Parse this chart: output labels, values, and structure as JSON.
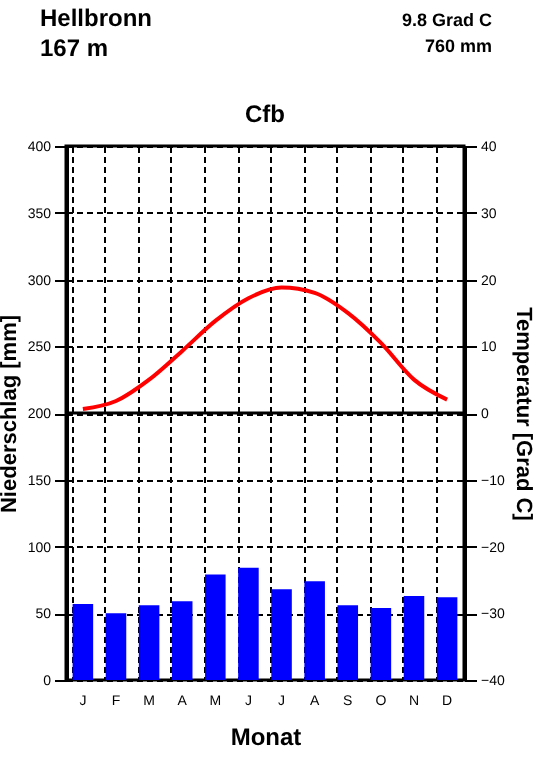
{
  "chart_data": {
    "type": "bar",
    "title": "Cfb",
    "annotations": [
      "Hellbronn",
      "167 m",
      "9.8 Grad C",
      "760 mm"
    ],
    "xlabel": "Monat",
    "ylabel": "Niederschlag [mm]",
    "y2label": "Temperatur [Grad C]",
    "categories": [
      "J",
      "F",
      "M",
      "A",
      "M",
      "J",
      "J",
      "A",
      "S",
      "O",
      "N",
      "D"
    ],
    "series": [
      {
        "color": "#0000ff",
        "values": [
          57,
          50,
          56,
          59,
          79,
          84,
          68,
          74,
          56,
          54,
          63,
          62
        ]
      },
      {
        "type": "line",
        "axis": "y2",
        "color": "#ff0000",
        "values": [
          0.6,
          1.8,
          5,
          9.3,
          13.8,
          17.2,
          18.8,
          18,
          15,
          10.5,
          5,
          2
        ]
      }
    ],
    "ylim": [
      0,
      400
    ],
    "yticks": [
      0,
      50,
      100,
      150,
      200,
      250,
      300,
      350,
      400
    ],
    "y2lim": [
      -40,
      40
    ],
    "y2ticks": [
      -40,
      -30,
      -20,
      -10,
      0,
      10,
      20,
      30,
      40
    ],
    "ref_lines": [
      {
        "axis": "y2",
        "value": 0,
        "color": "#000000"
      }
    ],
    "grid": true
  }
}
